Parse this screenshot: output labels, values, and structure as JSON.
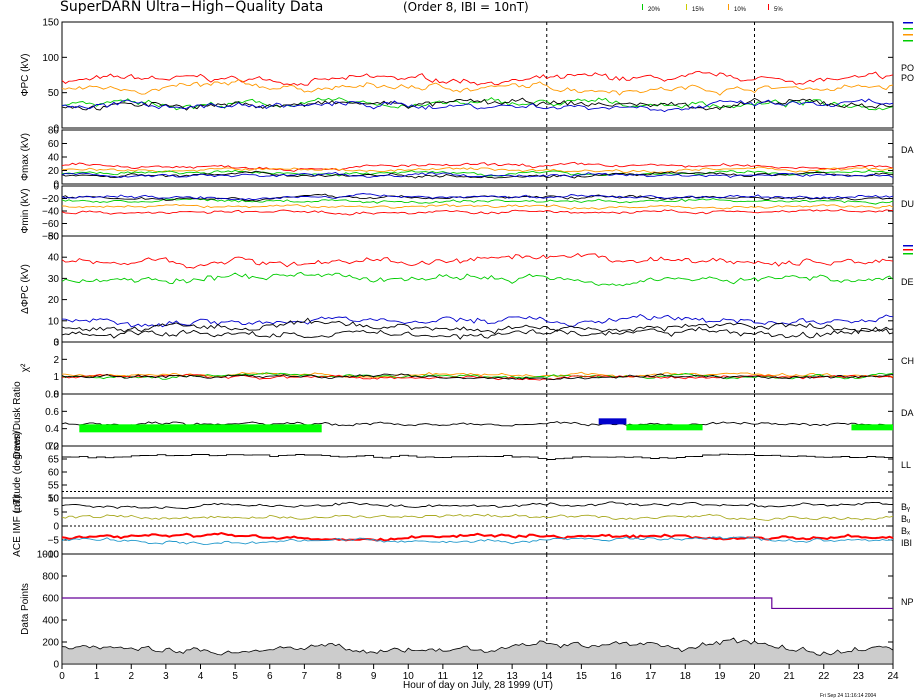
{
  "header": {
    "title": "SuperDARN Ultra−High−Quality Data",
    "subtitle": "(Order 8, IBI = 10nT)",
    "legend": [
      {
        "label": "20%",
        "color": "#00cc00"
      },
      {
        "label": "15%",
        "color": "#cccc00"
      },
      {
        "label": "10%",
        "color": "#ff9900"
      },
      {
        "label": "5%",
        "color": "#ff0000"
      }
    ]
  },
  "footer": {
    "xlabel": "Hour of day on July, 28 1999 (UT)",
    "timestamp": "Fri Sep 24 11:16:14 2004"
  },
  "chart_data": {
    "type": "line",
    "x_range": [
      0,
      24
    ],
    "x_ticks": [
      "0",
      "1",
      "2",
      "3",
      "4",
      "5",
      "6",
      "7",
      "8",
      "9",
      "10",
      "11",
      "12",
      "13",
      "14",
      "15",
      "16",
      "17",
      "18",
      "19",
      "20",
      "21",
      "22",
      "23",
      "24"
    ],
    "xlabel": "Hour of day on July, 28 1999 (UT)",
    "vertical_markers": [
      14,
      20
    ],
    "panels": [
      {
        "id": "pc",
        "ylabel": "ΦPC (kV)",
        "ylim": [
          0,
          150
        ],
        "yticks": [
          "0",
          "50",
          "100",
          "150"
        ],
        "side_labels": [
          "PO",
          "PO"
        ],
        "series": [
          {
            "color": "#ff0000",
            "level": 68
          },
          {
            "color": "#ff9900",
            "level": 57
          },
          {
            "color": "#00cc00",
            "level": 34
          },
          {
            "color": "#000000",
            "level": 33
          },
          {
            "color": "#0000cc",
            "level": 32
          }
        ]
      },
      {
        "id": "max",
        "ylabel": "Φmax (kV)",
        "ylim": [
          0,
          80
        ],
        "yticks": [
          "0",
          "20",
          "40",
          "60",
          "80"
        ],
        "side_labels": [
          "DA"
        ],
        "series": [
          {
            "color": "#ff0000",
            "level": 26
          },
          {
            "color": "#ff9900",
            "level": 21
          },
          {
            "color": "#00cc00",
            "level": 16
          },
          {
            "color": "#000000",
            "level": 14
          },
          {
            "color": "#0000cc",
            "level": 13
          }
        ]
      },
      {
        "id": "min",
        "ylabel": "Φmin (kV)",
        "ylim": [
          -80,
          0
        ],
        "yticks": [
          "0",
          "−20",
          "−40",
          "−60",
          "−80"
        ],
        "side_labels": [
          "DU"
        ],
        "series": [
          {
            "color": "#ff0000",
            "level": -42
          },
          {
            "color": "#ff9900",
            "level": -33
          },
          {
            "color": "#00cc00",
            "level": -24
          },
          {
            "color": "#000000",
            "level": -18
          },
          {
            "color": "#0000cc",
            "level": -17
          }
        ]
      },
      {
        "id": "dpc",
        "ylabel": "ΔΦPC (kV)",
        "ylim": [
          0,
          50
        ],
        "yticks": [
          "0",
          "10",
          "20",
          "30",
          "40",
          "50"
        ],
        "side_labels": [
          "DE"
        ],
        "series": [
          {
            "color": "#ff0000",
            "level": 38
          },
          {
            "color": "#00cc00",
            "level": 30
          },
          {
            "color": "#0000cc",
            "level": 10
          },
          {
            "color": "#000000",
            "level": 7
          },
          {
            "color": "#000000",
            "level": 4
          }
        ]
      },
      {
        "id": "chi",
        "ylabel": "χ²",
        "ylim": [
          0,
          3
        ],
        "yticks": [
          "0",
          "1",
          "2",
          "3"
        ],
        "side_labels": [
          "CH"
        ],
        "series": [
          {
            "color": "#ff9900",
            "level": 1.1
          },
          {
            "color": "#00cc00",
            "level": 1.05
          },
          {
            "color": "#ff0000",
            "level": 1.0
          },
          {
            "color": "#000000",
            "level": 1.0
          }
        ]
      },
      {
        "id": "ratio",
        "ylabel": "Dawn/Dusk Ratio",
        "ylim": [
          0.2,
          0.8
        ],
        "yticks": [
          "0.2",
          "0.4",
          "0.6",
          "0.8"
        ],
        "side_labels": [
          "DA"
        ],
        "series": [
          {
            "color": "#000000",
            "level": 0.45
          }
        ]
      },
      {
        "id": "lat",
        "ylabel": "Latitude (degrees)",
        "ylim": [
          50,
          70
        ],
        "yticks": [
          "50",
          "55",
          "60",
          "65",
          "70"
        ],
        "side_labels": [
          "LL"
        ],
        "series": [
          {
            "color": "#000000",
            "level": 66
          }
        ]
      },
      {
        "id": "imf",
        "ylabel": "ACE IMF (nT)",
        "ylim": [
          -10,
          10
        ],
        "yticks": [
          "−10",
          "−5",
          "0",
          "5",
          "10"
        ],
        "side_labels": [
          "Bᵧ",
          "Bᵤ",
          "Bₓ",
          "IBI"
        ],
        "series": [
          {
            "color": "#000000",
            "level": 7.5
          },
          {
            "color": "#aaaa22",
            "level": 3
          },
          {
            "color": "#ff0000",
            "level": -4
          },
          {
            "color": "#2299cc",
            "level": -5
          }
        ]
      },
      {
        "id": "pts",
        "ylabel": "Data Points",
        "ylim": [
          0,
          1000
        ],
        "yticks": [
          "0",
          "200",
          "400",
          "600",
          "800",
          "1000"
        ],
        "side_labels": [
          "NP"
        ],
        "series": [
          {
            "color": "#660099",
            "level": 600
          },
          {
            "color": "#888888",
            "level": 150
          }
        ]
      }
    ]
  }
}
